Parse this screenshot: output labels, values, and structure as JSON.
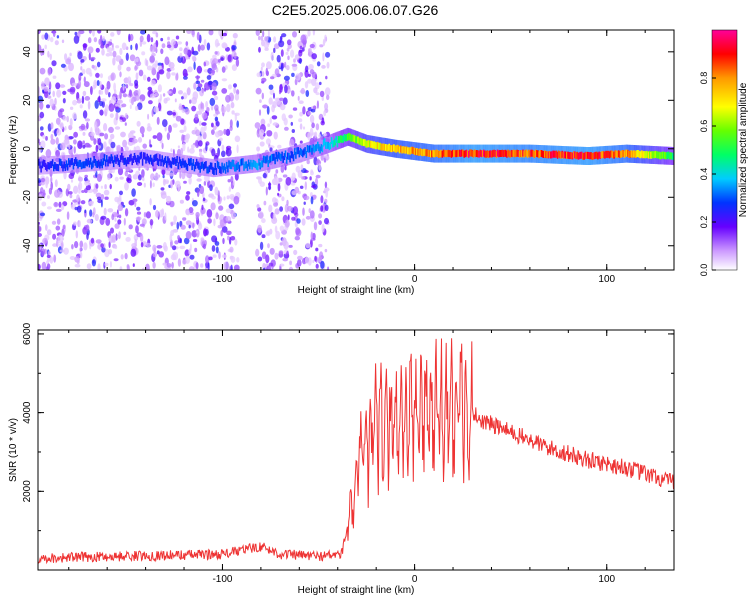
{
  "figure_title": "C2E5.2025.006.06.07.G26",
  "chart_data": [
    {
      "type": "heatmap",
      "title": "C2E5.2025.006.06.07.G26",
      "xlabel": "Height of straight line (km)",
      "ylabel": "Frequency (Hz)",
      "xlim": [
        -196,
        135
      ],
      "ylim": [
        -50,
        49
      ],
      "x_ticks": [
        -100,
        0,
        100
      ],
      "y_ticks": [
        -40,
        -20,
        0,
        20,
        40
      ],
      "colorbar": {
        "label": "Normalized spectral amplitude",
        "range": [
          0.0,
          1.0
        ],
        "ticks": [
          0.0,
          0.2,
          0.4,
          0.6,
          0.8
        ]
      },
      "noise_region_x": [
        -196,
        -45
      ],
      "blank_band_x": [
        -92,
        -82
      ],
      "ridge": [
        {
          "x": -196,
          "y": -7,
          "amp": 0.25
        },
        {
          "x": -175,
          "y": -6,
          "amp": 0.3
        },
        {
          "x": -160,
          "y": -5,
          "amp": 0.28
        },
        {
          "x": -140,
          "y": -4,
          "amp": 0.25
        },
        {
          "x": -105,
          "y": -8,
          "amp": 0.3
        },
        {
          "x": -82,
          "y": -6,
          "amp": 0.35
        },
        {
          "x": -60,
          "y": -2,
          "amp": 0.3
        },
        {
          "x": -45,
          "y": 2,
          "amp": 0.4
        },
        {
          "x": -35,
          "y": 5,
          "amp": 0.55
        },
        {
          "x": -25,
          "y": 2,
          "amp": 0.7
        },
        {
          "x": -10,
          "y": 0,
          "amp": 0.8
        },
        {
          "x": 10,
          "y": -2,
          "amp": 0.85
        },
        {
          "x": 30,
          "y": -2,
          "amp": 0.95
        },
        {
          "x": 60,
          "y": -2,
          "amp": 0.9
        },
        {
          "x": 90,
          "y": -3,
          "amp": 0.95
        },
        {
          "x": 110,
          "y": -2,
          "amp": 0.85
        },
        {
          "x": 135,
          "y": -3,
          "amp": 0.5
        }
      ]
    },
    {
      "type": "line",
      "xlabel": "Height of straight line (km)",
      "ylabel": "SNR (10 * v/v)",
      "xlim": [
        -196,
        135
      ],
      "ylim": [
        0,
        6100
      ],
      "x_ticks": [
        -100,
        0,
        100
      ],
      "y_ticks": [
        2000,
        4000,
        6000
      ],
      "color": "#ee3333",
      "envelope": [
        {
          "x": -196,
          "y": 250
        },
        {
          "x": -150,
          "y": 300
        },
        {
          "x": -100,
          "y": 350
        },
        {
          "x": -80,
          "y": 550
        },
        {
          "x": -70,
          "y": 350
        },
        {
          "x": -50,
          "y": 300
        },
        {
          "x": -38,
          "y": 350
        },
        {
          "x": -33,
          "y": 1500
        },
        {
          "x": -28,
          "y": 2800
        },
        {
          "x": -20,
          "y": 3600
        },
        {
          "x": -10,
          "y": 3800
        },
        {
          "x": 0,
          "y": 4000
        },
        {
          "x": 5,
          "y": 4100
        },
        {
          "x": 15,
          "y": 4000
        },
        {
          "x": 25,
          "y": 4200
        },
        {
          "x": 35,
          "y": 3800
        },
        {
          "x": 50,
          "y": 3500
        },
        {
          "x": 70,
          "y": 3100
        },
        {
          "x": 90,
          "y": 2800
        },
        {
          "x": 110,
          "y": 2600
        },
        {
          "x": 135,
          "y": 2200
        }
      ]
    }
  ]
}
